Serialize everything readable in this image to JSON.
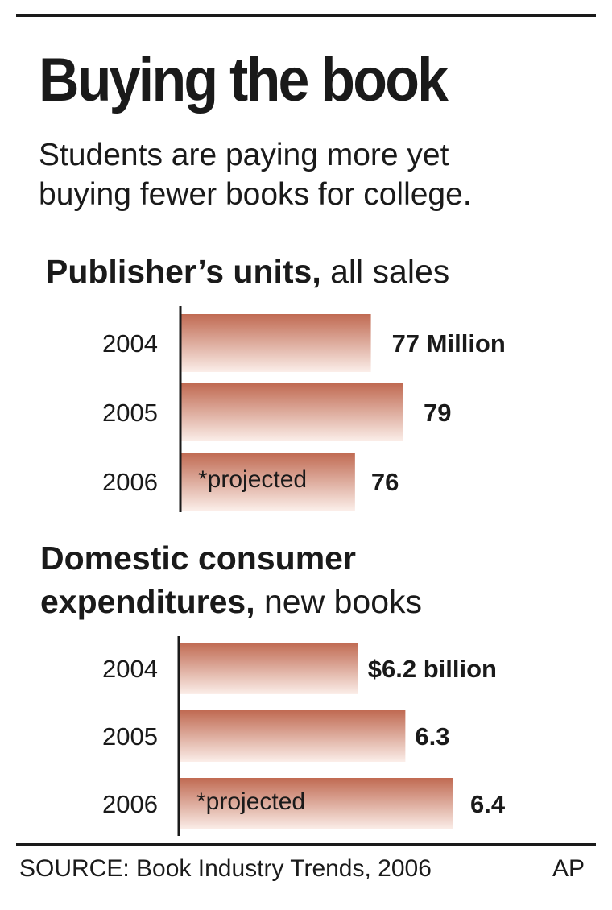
{
  "headline": "Buying the book",
  "deck_lines": [
    "Students are paying more yet",
    "buying fewer books for college."
  ],
  "chart1": {
    "title_bold": "Publisher’s units,",
    "title_rest": " all sales"
  },
  "chart2": {
    "title_bold_line1": "Domestic consumer",
    "title_bold_line2": "expenditures,",
    "title_rest_line2": " new books"
  },
  "source": "SOURCE: Book Industry Trends, 2006",
  "credit": "AP",
  "colors": {
    "bar_dark": "#c06a52",
    "bar_light": "#fbeee9",
    "text": "#1a1a1a"
  },
  "chart_data": [
    {
      "type": "bar",
      "orientation": "horizontal",
      "categories": [
        "2004",
        "2005",
        "2006"
      ],
      "values": [
        77,
        79,
        76
      ],
      "value_labels": [
        "77 Million",
        "79",
        "76"
      ],
      "bar_annotations": [
        "",
        "",
        "*projected"
      ],
      "unit": "Million"
    },
    {
      "type": "bar",
      "orientation": "horizontal",
      "categories": [
        "2004",
        "2005",
        "2006"
      ],
      "values": [
        6.2,
        6.3,
        6.4
      ],
      "value_labels": [
        "$6.2 billion",
        "6.3",
        "6.4"
      ],
      "bar_annotations": [
        "",
        "",
        "*projected"
      ],
      "unit": "billion"
    }
  ]
}
